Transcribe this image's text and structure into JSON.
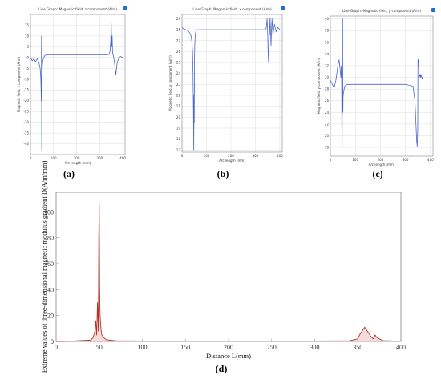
{
  "captions": {
    "a": "(a)",
    "b": "(b)",
    "c": "(c)",
    "d": "(d)"
  },
  "colors": {
    "line_small": "#4a66cc",
    "line_d": "#b0342a",
    "fill_d": "#f4c2c2",
    "axis": "#888888",
    "grid": "#dcdcdc",
    "info_icon": "#1f6fd6"
  },
  "icons": {
    "panel_info": "info-square-icon"
  },
  "chart_data": [
    {
      "id": "a",
      "type": "line",
      "title": "Line Graph: Magnetic field, z component (A/m)",
      "xlabel": "Arc length (mm)",
      "ylabel": "Magnetic field, z component (A/m)",
      "xlim": [
        0,
        410
      ],
      "ylim": [
        -45,
        20
      ],
      "xticks": [
        0,
        100,
        200,
        300,
        400
      ],
      "yticks": [
        15,
        10,
        5,
        0,
        -5,
        -10,
        -15,
        -20,
        -25,
        -30,
        -35,
        -40
      ],
      "grid": true,
      "series": [
        {
          "x": [
            0,
            8,
            15,
            22,
            30,
            37,
            42,
            45,
            47,
            48,
            49,
            50,
            51,
            52,
            53,
            55,
            58,
            62,
            70,
            90,
            150,
            250,
            330,
            340,
            345,
            348,
            350,
            352,
            354,
            356,
            360,
            365,
            370,
            375,
            380,
            385,
            390,
            400
          ],
          "y": [
            0,
            -1.5,
            -0.5,
            -2,
            -0.5,
            -2.5,
            -5,
            -10,
            -20,
            10,
            -43,
            12,
            -5,
            -3,
            -2,
            -1,
            0,
            1,
            1.2,
            1.2,
            1.2,
            1.2,
            1.2,
            1.5,
            3,
            8,
            16,
            5,
            10,
            2,
            0.5,
            -3,
            -8,
            -3,
            -1,
            0,
            0.5,
            0
          ]
        }
      ]
    },
    {
      "id": "b",
      "type": "line",
      "title": "Line Graph: Magnetic field, x component (A/m)",
      "xlabel": "Arc length (mm)",
      "ylabel": "Magnetic field, x component (A/m)",
      "xlim": [
        0,
        410
      ],
      "ylim": [
        16.8,
        29.4
      ],
      "xticks": [
        0,
        100,
        200,
        300,
        400
      ],
      "yticks": [
        29,
        28,
        27,
        26,
        25,
        24,
        23,
        22,
        21,
        20,
        19,
        18,
        17
      ],
      "grid": true,
      "series": [
        {
          "x": [
            0,
            5,
            15,
            25,
            35,
            40,
            43,
            45,
            47,
            48,
            49,
            50,
            51,
            52,
            54,
            56,
            60,
            70,
            100,
            200,
            300,
            340,
            345,
            348,
            350,
            352,
            354,
            356,
            358,
            360,
            362,
            364,
            366,
            368,
            372,
            378,
            385,
            392,
            400
          ],
          "y": [
            28.2,
            28.1,
            28.0,
            27.9,
            27.6,
            27.0,
            26.0,
            24.0,
            20.0,
            17.0,
            22.0,
            19.5,
            25.0,
            26.5,
            27.5,
            27.8,
            28.0,
            28.0,
            28.0,
            28.0,
            28.0,
            28.0,
            28.2,
            29.0,
            28.0,
            26.0,
            25.0,
            28.5,
            27.5,
            29.1,
            28.0,
            26.5,
            28.0,
            29.0,
            27.5,
            28.5,
            27.8,
            28.2,
            28.0
          ]
        }
      ]
    },
    {
      "id": "c",
      "type": "line",
      "title": "Line Graph: Magnetic field, y component (A/m)",
      "xlabel": "Arc length (mm)",
      "ylabel": "Magnetic field, y component (A/m)",
      "xlim": [
        0,
        410
      ],
      "ylim": [
        16.5,
        40.5
      ],
      "xticks": [
        0,
        100,
        200,
        300,
        400
      ],
      "yticks": [
        40,
        38,
        36,
        34,
        32,
        30,
        28,
        26,
        24,
        22,
        20,
        18
      ],
      "grid": true,
      "series": [
        {
          "x": [
            0,
            8,
            15,
            22,
            30,
            35,
            40,
            42,
            44,
            45,
            46,
            47,
            48,
            49,
            50,
            51,
            53,
            55,
            58,
            62,
            70,
            80,
            100,
            300,
            330,
            338,
            342,
            345,
            347,
            349,
            350,
            352,
            355,
            358,
            360,
            362,
            365,
            367,
            370
          ],
          "y": [
            29.5,
            28.8,
            28.2,
            29.5,
            32.0,
            33.0,
            31.0,
            30.0,
            32.0,
            30.0,
            21.0,
            18.0,
            33.0,
            40.0,
            24.0,
            27.0,
            27.5,
            28.0,
            28.5,
            28.7,
            28.8,
            28.8,
            28.8,
            28.8,
            28.5,
            26.0,
            22.0,
            19.0,
            18.2,
            21.0,
            33.0,
            33.0,
            30.0,
            30.5,
            30.0,
            30.5,
            30.0,
            29.8,
            29.9
          ]
        }
      ]
    },
    {
      "id": "d",
      "type": "line",
      "title": "",
      "xlabel": "Distance L(mm)",
      "ylabel": "Extreme values of three-dimensional magnetic modulus gradient D(A/m/mm)",
      "xlim": [
        0,
        400
      ],
      "ylim": [
        0,
        115
      ],
      "xticks": [
        0,
        50,
        100,
        150,
        200,
        250,
        300,
        350,
        400
      ],
      "yticks": [
        0,
        20,
        40,
        60,
        80,
        100
      ],
      "grid": false,
      "series": [
        {
          "x": [
            0,
            20,
            40,
            43,
            45,
            46,
            47,
            48,
            49,
            49.5,
            50,
            50.5,
            51,
            52,
            53,
            55,
            58,
            62,
            70,
            100,
            200,
            300,
            340,
            350,
            352,
            355,
            358,
            360,
            362,
            365,
            368,
            370,
            372,
            375,
            378,
            380,
            385,
            390,
            400
          ],
          "y": [
            0,
            0.3,
            1,
            3,
            8,
            16,
            5,
            30,
            8,
            80,
            107,
            40,
            20,
            10,
            5,
            3,
            1.5,
            1,
            0.5,
            0.3,
            0.3,
            0.3,
            0.5,
            2,
            5,
            8,
            11,
            9,
            7,
            4,
            2,
            5,
            3,
            2,
            1,
            0.5,
            0.5,
            0.3,
            0.2
          ]
        }
      ]
    }
  ]
}
